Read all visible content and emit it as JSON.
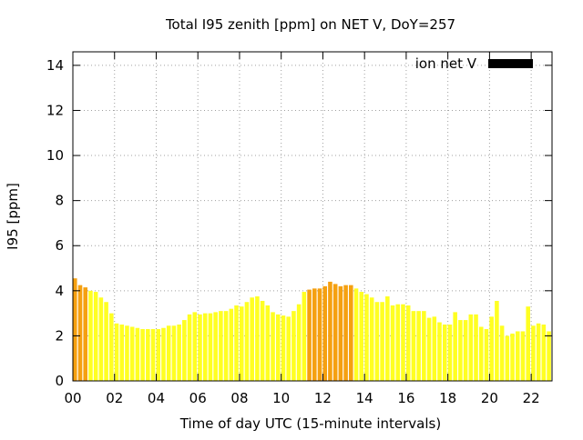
{
  "chart_data": {
    "type": "bar",
    "title": "Total I95 zenith [ppm] on NET V, DoY=257",
    "xlabel": "Time of day UTC (15-minute intervals)",
    "ylabel": "I95 [ppm]",
    "xlim": [
      0,
      23
    ],
    "ylim": [
      0,
      14.6
    ],
    "x_ticks": [
      0,
      2,
      4,
      6,
      8,
      10,
      12,
      14,
      16,
      18,
      20,
      22
    ],
    "x_tick_labels": [
      "00",
      "02",
      "04",
      "06",
      "08",
      "10",
      "12",
      "14",
      "16",
      "18",
      "20",
      "22"
    ],
    "y_ticks": [
      0,
      2,
      4,
      6,
      8,
      10,
      12,
      14
    ],
    "y_tick_labels": [
      "0",
      "2",
      "4",
      "6",
      "8",
      "10",
      "12",
      "14"
    ],
    "grid": true,
    "legend_position": "top-right",
    "legend": {
      "label": "ion net V",
      "color": "#000000"
    },
    "colors": {
      "yellow": "#ffff22",
      "orange": "#f5a010"
    },
    "interval_hours": 0.25,
    "values": [
      4.55,
      4.25,
      4.15,
      4.0,
      3.95,
      3.7,
      3.5,
      3.0,
      2.55,
      2.5,
      2.45,
      2.4,
      2.35,
      2.3,
      2.3,
      2.3,
      2.3,
      2.35,
      2.45,
      2.45,
      2.5,
      2.7,
      2.95,
      3.05,
      2.95,
      3.0,
      3.0,
      3.05,
      3.1,
      3.1,
      3.2,
      3.35,
      3.3,
      3.5,
      3.7,
      3.75,
      3.55,
      3.35,
      3.05,
      2.95,
      2.9,
      2.85,
      3.1,
      3.4,
      3.95,
      4.05,
      4.1,
      4.1,
      4.2,
      4.4,
      4.3,
      4.2,
      4.25,
      4.25,
      4.1,
      3.95,
      3.85,
      3.7,
      3.5,
      3.5,
      3.75,
      3.35,
      3.4,
      3.4,
      3.35,
      3.1,
      3.1,
      3.1,
      2.8,
      2.85,
      2.6,
      2.5,
      2.5,
      3.05,
      2.7,
      2.7,
      2.95,
      2.95,
      2.4,
      2.3,
      2.85,
      3.55,
      2.45,
      2.0,
      2.1,
      2.2,
      2.2,
      3.3,
      2.45,
      2.55,
      2.5,
      2.2
    ],
    "bar_colors": [
      "orange",
      "orange",
      "orange",
      "yellow",
      "yellow",
      "yellow",
      "yellow",
      "yellow",
      "yellow",
      "yellow",
      "yellow",
      "yellow",
      "yellow",
      "yellow",
      "yellow",
      "yellow",
      "yellow",
      "yellow",
      "yellow",
      "yellow",
      "yellow",
      "yellow",
      "yellow",
      "yellow",
      "yellow",
      "yellow",
      "yellow",
      "yellow",
      "yellow",
      "yellow",
      "yellow",
      "yellow",
      "yellow",
      "yellow",
      "yellow",
      "yellow",
      "yellow",
      "yellow",
      "yellow",
      "yellow",
      "yellow",
      "yellow",
      "yellow",
      "yellow",
      "yellow",
      "orange",
      "orange",
      "orange",
      "orange",
      "orange",
      "orange",
      "orange",
      "orange",
      "orange",
      "yellow",
      "yellow",
      "yellow",
      "yellow",
      "yellow",
      "yellow",
      "yellow",
      "yellow",
      "yellow",
      "yellow",
      "yellow",
      "yellow",
      "yellow",
      "yellow",
      "yellow",
      "yellow",
      "yellow",
      "yellow",
      "yellow",
      "yellow",
      "yellow",
      "yellow",
      "yellow",
      "yellow",
      "yellow",
      "yellow",
      "yellow",
      "yellow",
      "yellow",
      "yellow",
      "yellow",
      "yellow",
      "yellow",
      "yellow",
      "yellow",
      "yellow",
      "yellow",
      "yellow"
    ]
  }
}
